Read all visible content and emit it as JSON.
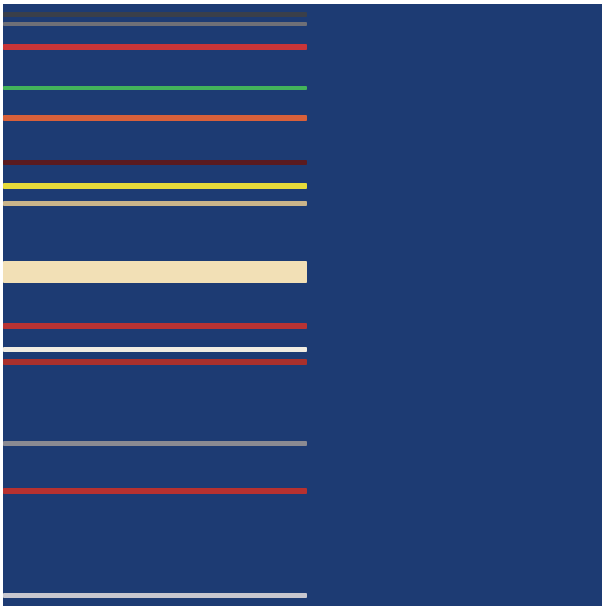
{
  "artwork": {
    "background_color": "#1d3b73",
    "stripe_colors": [
      "#3a3f4a",
      "#6e6f77",
      "#c83538",
      "#43b35a",
      "#d8603a",
      "#5a1a1f",
      "#e6db3a",
      "#c9b48a",
      "#f2e0b6",
      "#b93333",
      "#f1ece2",
      "#a9302c",
      "#8a8a92",
      "#b7312f",
      "#c7c7cf"
    ]
  }
}
